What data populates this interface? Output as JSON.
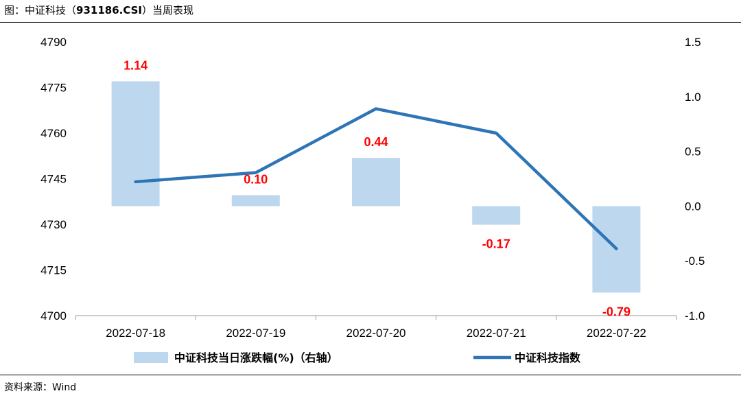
{
  "title": {
    "prefix": "图：中证科技（",
    "code": "931186.CSI",
    "suffix": "）当周表现"
  },
  "source": "资料来源：Wind",
  "colors": {
    "bar": "#bdd7ee",
    "line": "#2e75b6",
    "label": "#ff0000"
  },
  "chart_data": {
    "type": "bar+line",
    "categories": [
      "2022-07-18",
      "2022-07-19",
      "2022-07-20",
      "2022-07-21",
      "2022-07-22"
    ],
    "series": [
      {
        "name": "中证科技当日涨跌幅(%)（右轴）",
        "type": "bar",
        "axis": "right",
        "values": [
          1.14,
          0.1,
          0.44,
          -0.17,
          -0.79
        ],
        "labels": [
          "1.14",
          "0.10",
          "0.44",
          "-0.17",
          "-0.79"
        ]
      },
      {
        "name": "中证科技指数",
        "type": "line",
        "axis": "left",
        "values": [
          4744,
          4747,
          4768,
          4760,
          4722
        ]
      }
    ],
    "left_axis": {
      "ylim": [
        4700,
        4790
      ],
      "ticks": [
        "4700",
        "4715",
        "4730",
        "4745",
        "4760",
        "4775",
        "4790"
      ]
    },
    "right_axis": {
      "ylim": [
        -1.0,
        1.5
      ],
      "ticks": [
        "-1.0",
        "-0.5",
        "0.0",
        "0.5",
        "1.0",
        "1.5"
      ]
    },
    "grid": false,
    "legend_position": "bottom"
  }
}
